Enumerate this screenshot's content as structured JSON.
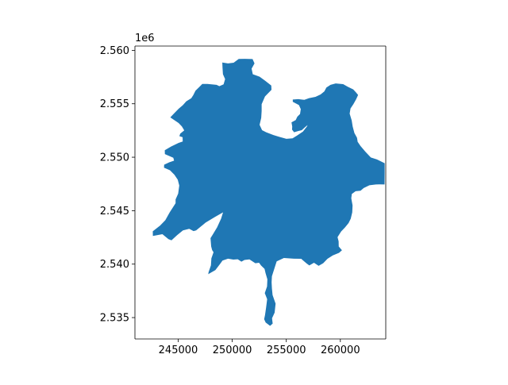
{
  "figure": {
    "offset_text": "1e6",
    "fill_color": "#1f77b4",
    "background": "#ffffff",
    "axis_color": "#000000"
  },
  "chart_data": {
    "type": "map",
    "title": "",
    "xlabel": "",
    "ylabel": "",
    "xlim": [
      241000,
      264200
    ],
    "ylim": [
      2533000,
      2560400
    ],
    "x_ticks": [
      245000,
      250000,
      255000,
      260000
    ],
    "x_tick_labels": [
      "245000",
      "250000",
      "255000",
      "260000"
    ],
    "y_ticks": [
      2535000,
      2540000,
      2545000,
      2550000,
      2555000,
      2560000
    ],
    "y_tick_labels": [
      "2.535",
      "2.540",
      "2.545",
      "2.550",
      "2.555",
      "2.560"
    ],
    "y_offset_label": "1e6",
    "grid": false,
    "legend": "none",
    "polygon": {
      "name": "",
      "color": "#1f77b4",
      "coordinates": [
        [
          244270,
          2553730
        ],
        [
          245040,
          2553200
        ],
        [
          245340,
          2552880
        ],
        [
          245560,
          2552510
        ],
        [
          245190,
          2552200
        ],
        [
          245110,
          2551970
        ],
        [
          245410,
          2551870
        ],
        [
          245420,
          2551470
        ],
        [
          245040,
          2551340
        ],
        [
          244340,
          2551000
        ],
        [
          243760,
          2550650
        ],
        [
          243770,
          2550290
        ],
        [
          244550,
          2549950
        ],
        [
          244620,
          2549680
        ],
        [
          244170,
          2549520
        ],
        [
          243700,
          2549300
        ],
        [
          243690,
          2549020
        ],
        [
          244240,
          2548780
        ],
        [
          244650,
          2548360
        ],
        [
          244960,
          2547900
        ],
        [
          245100,
          2547350
        ],
        [
          245000,
          2546600
        ],
        [
          244760,
          2546050
        ],
        [
          244760,
          2545700
        ],
        [
          244210,
          2544830
        ],
        [
          243810,
          2544110
        ],
        [
          243330,
          2543610
        ],
        [
          242650,
          2543070
        ],
        [
          242660,
          2542630
        ],
        [
          243540,
          2542800
        ],
        [
          244100,
          2542340
        ],
        [
          244380,
          2542230
        ],
        [
          244900,
          2542710
        ],
        [
          245440,
          2543150
        ],
        [
          246020,
          2543300
        ],
        [
          246420,
          2543090
        ],
        [
          246660,
          2543150
        ],
        [
          247540,
          2543890
        ],
        [
          248410,
          2544420
        ],
        [
          249150,
          2544840
        ],
        [
          248970,
          2544260
        ],
        [
          248600,
          2543440
        ],
        [
          248180,
          2542740
        ],
        [
          247990,
          2542430
        ],
        [
          248050,
          2541660
        ],
        [
          248140,
          2541320
        ],
        [
          248270,
          2541110
        ],
        [
          248070,
          2540540
        ],
        [
          248030,
          2539890
        ],
        [
          247810,
          2539250
        ],
        [
          247780,
          2539060
        ],
        [
          248440,
          2539440
        ],
        [
          248860,
          2540000
        ],
        [
          249100,
          2540330
        ],
        [
          249610,
          2540510
        ],
        [
          250100,
          2540430
        ],
        [
          250510,
          2540450
        ],
        [
          250850,
          2540230
        ],
        [
          251130,
          2540390
        ],
        [
          251590,
          2540440
        ],
        [
          252140,
          2540080
        ],
        [
          252480,
          2540130
        ],
        [
          252660,
          2539880
        ],
        [
          252990,
          2539550
        ],
        [
          253080,
          2539160
        ],
        [
          253250,
          2538580
        ],
        [
          253220,
          2537910
        ],
        [
          253010,
          2537290
        ],
        [
          253230,
          2536720
        ],
        [
          253130,
          2535920
        ],
        [
          253030,
          2535230
        ],
        [
          252950,
          2534850
        ],
        [
          253090,
          2534540
        ],
        [
          253500,
          2534230
        ],
        [
          253740,
          2534440
        ],
        [
          253680,
          2534940
        ],
        [
          253920,
          2535460
        ],
        [
          254010,
          2536300
        ],
        [
          253730,
          2537110
        ],
        [
          253670,
          2537730
        ],
        [
          253640,
          2538300
        ],
        [
          253670,
          2538870
        ],
        [
          253930,
          2539690
        ],
        [
          254110,
          2540260
        ],
        [
          254780,
          2540570
        ],
        [
          255700,
          2540510
        ],
        [
          256380,
          2540500
        ],
        [
          256890,
          2540050
        ],
        [
          257130,
          2539880
        ],
        [
          257560,
          2540130
        ],
        [
          257990,
          2539840
        ],
        [
          258410,
          2540080
        ],
        [
          258810,
          2540500
        ],
        [
          259300,
          2540820
        ],
        [
          259880,
          2541060
        ],
        [
          260150,
          2541300
        ],
        [
          259850,
          2541650
        ],
        [
          259840,
          2542130
        ],
        [
          259740,
          2542520
        ],
        [
          260070,
          2543050
        ],
        [
          260430,
          2543430
        ],
        [
          260760,
          2543840
        ],
        [
          260960,
          2544250
        ],
        [
          261100,
          2544840
        ],
        [
          261130,
          2545490
        ],
        [
          261010,
          2546160
        ],
        [
          261060,
          2546560
        ],
        [
          261410,
          2546820
        ],
        [
          261870,
          2546870
        ],
        [
          262160,
          2547120
        ],
        [
          262690,
          2547380
        ],
        [
          263290,
          2547450
        ],
        [
          263610,
          2547460
        ],
        [
          264090,
          2547450
        ],
        [
          264100,
          2548520
        ],
        [
          264100,
          2549440
        ],
        [
          263390,
          2549790
        ],
        [
          262820,
          2549980
        ],
        [
          262340,
          2550490
        ],
        [
          261870,
          2551040
        ],
        [
          261600,
          2551440
        ],
        [
          261540,
          2551820
        ],
        [
          261300,
          2552260
        ],
        [
          261140,
          2552870
        ],
        [
          261050,
          2553440
        ],
        [
          260860,
          2554080
        ],
        [
          260940,
          2554560
        ],
        [
          261210,
          2554970
        ],
        [
          261470,
          2555440
        ],
        [
          261640,
          2555820
        ],
        [
          261430,
          2556080
        ],
        [
          261190,
          2556340
        ],
        [
          260680,
          2556590
        ],
        [
          260260,
          2556840
        ],
        [
          259570,
          2556900
        ],
        [
          259090,
          2556770
        ],
        [
          258710,
          2556520
        ],
        [
          258520,
          2556160
        ],
        [
          258170,
          2555870
        ],
        [
          257700,
          2555650
        ],
        [
          257110,
          2555530
        ],
        [
          256670,
          2555370
        ],
        [
          256110,
          2555430
        ],
        [
          255600,
          2555400
        ],
        [
          255600,
          2555180
        ],
        [
          256170,
          2554880
        ],
        [
          256340,
          2554500
        ],
        [
          256270,
          2554040
        ],
        [
          256020,
          2553790
        ],
        [
          255870,
          2553480
        ],
        [
          255480,
          2553260
        ],
        [
          255550,
          2552860
        ],
        [
          255530,
          2552580
        ],
        [
          255720,
          2552330
        ],
        [
          256120,
          2552450
        ],
        [
          256430,
          2552530
        ],
        [
          256750,
          2552830
        ],
        [
          257160,
          2553160
        ],
        [
          257620,
          2553330
        ],
        [
          257620,
          2553740
        ],
        [
          257230,
          2553520
        ],
        [
          256900,
          2552860
        ],
        [
          256540,
          2552400
        ],
        [
          256010,
          2552040
        ],
        [
          255580,
          2551770
        ],
        [
          255010,
          2551720
        ],
        [
          254380,
          2551900
        ],
        [
          253810,
          2552070
        ],
        [
          253140,
          2552330
        ],
        [
          252760,
          2552530
        ],
        [
          252530,
          2553030
        ],
        [
          252680,
          2553680
        ],
        [
          252720,
          2554330
        ],
        [
          252720,
          2554960
        ],
        [
          253030,
          2555680
        ],
        [
          253630,
          2556310
        ],
        [
          253610,
          2556710
        ],
        [
          253060,
          2557140
        ],
        [
          252530,
          2557530
        ],
        [
          251900,
          2557760
        ],
        [
          251790,
          2558280
        ],
        [
          252060,
          2558780
        ],
        [
          251880,
          2559180
        ],
        [
          251160,
          2559200
        ],
        [
          250600,
          2559190
        ],
        [
          250130,
          2558840
        ],
        [
          249610,
          2558780
        ],
        [
          249080,
          2558860
        ],
        [
          249100,
          2558390
        ],
        [
          249140,
          2557760
        ],
        [
          249340,
          2557310
        ],
        [
          249200,
          2556820
        ],
        [
          248780,
          2556630
        ],
        [
          248520,
          2556300
        ],
        [
          248140,
          2555960
        ],
        [
          247960,
          2555480
        ],
        [
          248330,
          2555050
        ],
        [
          248770,
          2555080
        ],
        [
          249170,
          2555440
        ],
        [
          249210,
          2556200
        ],
        [
          249080,
          2556510
        ],
        [
          248550,
          2556770
        ],
        [
          247710,
          2556850
        ],
        [
          247230,
          2556850
        ],
        [
          246940,
          2556560
        ],
        [
          246600,
          2556220
        ],
        [
          246400,
          2555810
        ],
        [
          246210,
          2555520
        ],
        [
          245750,
          2555230
        ],
        [
          245430,
          2554870
        ],
        [
          245040,
          2554530
        ],
        [
          244620,
          2554100
        ],
        [
          244270,
          2553730
        ]
      ]
    }
  }
}
